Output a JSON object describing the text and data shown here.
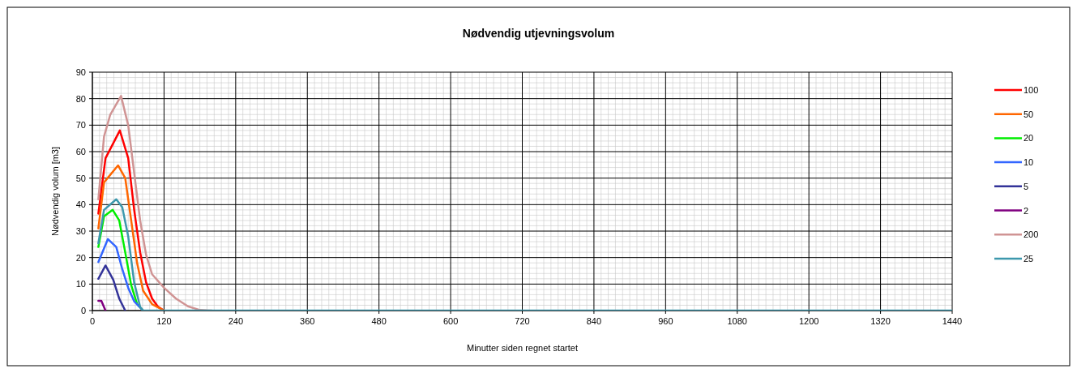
{
  "chart_data": {
    "type": "line",
    "title": "Nødvendig utjevningsvolum",
    "xlabel": "Minutter siden regnet startet",
    "ylabel": "Nødvendig volum [m3]",
    "xlim": [
      0,
      1440
    ],
    "xticks": [
      0,
      120,
      240,
      360,
      480,
      600,
      720,
      840,
      960,
      1080,
      1200,
      1320,
      1440
    ],
    "ylim": [
      0,
      90
    ],
    "yticks": [
      0,
      10,
      20,
      30,
      40,
      50,
      60,
      70,
      80,
      90
    ],
    "grid": true,
    "legend": "right",
    "marker": "none",
    "line_style": "solid",
    "series": [
      {
        "name": "100",
        "color": "#ff0000",
        "x": [
          10,
          22,
          46,
          60,
          70,
          80,
          90,
          100,
          110,
          120
        ],
        "values": [
          36.6,
          57.5,
          68,
          57.5,
          38,
          22,
          10.6,
          4.5,
          1.4,
          0
        ]
      },
      {
        "name": "50",
        "color": "#ff6600",
        "x": [
          10,
          19.5,
          43,
          55,
          65,
          75,
          85,
          100,
          120
        ],
        "values": [
          31,
          48.4,
          54.8,
          50,
          34,
          17.8,
          7.5,
          2.4,
          0
        ]
      },
      {
        "name": "20",
        "color": "#00ee00",
        "x": [
          10,
          19.5,
          34,
          45,
          55,
          65,
          75,
          85
        ],
        "values": [
          24,
          35.6,
          38,
          34,
          22,
          9.6,
          2.4,
          0
        ]
      },
      {
        "name": "10",
        "color": "#3366ff",
        "x": [
          10,
          26,
          40,
          50,
          60,
          70,
          85
        ],
        "values": [
          18.3,
          27,
          24,
          15.7,
          8.6,
          3.5,
          0
        ]
      },
      {
        "name": "5",
        "color": "#333399",
        "x": [
          10,
          22,
          35,
          45,
          55
        ],
        "values": [
          12,
          17,
          11.6,
          4.5,
          0
        ]
      },
      {
        "name": "2",
        "color": "#800080",
        "x": [
          10,
          15,
          22
        ],
        "values": [
          3.7,
          3.7,
          0
        ]
      },
      {
        "name": "200",
        "color": "#d09494",
        "x": [
          10,
          19.5,
          30,
          48,
          60,
          70,
          80,
          90,
          100,
          120,
          140,
          160,
          180,
          200
        ],
        "values": [
          42,
          65.7,
          74,
          81,
          70,
          52,
          34,
          21,
          13.7,
          8.6,
          4.5,
          1.6,
          0.2,
          0
        ]
      },
      {
        "name": "25",
        "color": "#3d98ad",
        "x": [
          10,
          19.5,
          40,
          50,
          60,
          70,
          80,
          85,
          1440
        ],
        "values": [
          25.4,
          38,
          42,
          39,
          28,
          10.6,
          1.4,
          0,
          0
        ]
      }
    ]
  }
}
